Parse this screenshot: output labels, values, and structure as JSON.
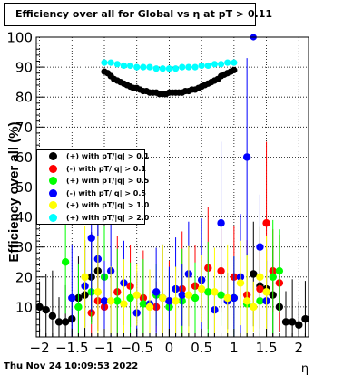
{
  "footer": "Thu Nov 24 10:09:53 2022",
  "chart_data": {
    "type": "scatter",
    "title": "Efficiency over all for Global vs   η at pT > 0.11",
    "xlabel": "η",
    "ylabel": "Efficiency over all (%)",
    "xlim": [
      -2.05,
      2.15
    ],
    "ylim": [
      0,
      100
    ],
    "xticks": [
      "−2",
      "−1.5",
      "−1",
      "−0.5",
      "0",
      "0.5",
      "1",
      "1.5",
      "2"
    ],
    "yticks": [
      "10",
      "20",
      "30",
      "40",
      "50",
      "60",
      "70",
      "80",
      "90",
      "100"
    ],
    "grid": true,
    "legend_position": "middle-left",
    "series": [
      {
        "name": "(+) with pT/|q| > 0.1",
        "color": "#000000",
        "x": [
          -2.0,
          -1.9,
          -1.8,
          -1.7,
          -1.6,
          -1.5,
          -1.4,
          -1.3,
          -1.2,
          -1.1,
          -1.0,
          -0.95,
          -0.9,
          -0.85,
          -0.8,
          -0.75,
          -0.7,
          -0.65,
          -0.6,
          -0.55,
          -0.5,
          -0.45,
          -0.4,
          -0.35,
          -0.3,
          -0.25,
          -0.2,
          -0.15,
          -0.1,
          -0.05,
          0.0,
          0.05,
          0.1,
          0.15,
          0.2,
          0.25,
          0.3,
          0.35,
          0.4,
          0.45,
          0.5,
          0.55,
          0.6,
          0.65,
          0.7,
          0.75,
          0.8,
          0.85,
          0.9,
          0.95,
          1.0,
          1.3,
          1.4,
          1.5,
          1.6,
          1.7,
          1.8,
          1.9,
          2.0,
          2.1
        ],
        "y": [
          10,
          9,
          7,
          5,
          5,
          6,
          13,
          14,
          20,
          22,
          88.5,
          88,
          87,
          86,
          85.5,
          85,
          84.5,
          84,
          83.5,
          83,
          83,
          82.5,
          82,
          82,
          81.5,
          81.5,
          81.5,
          81,
          81,
          81,
          81.5,
          81.5,
          81.5,
          81.5,
          81.5,
          82,
          82,
          82.5,
          82.5,
          83,
          83.5,
          84,
          84.5,
          85,
          85.5,
          86,
          87,
          87.5,
          88,
          88.5,
          89,
          21,
          17,
          16,
          14,
          10,
          5,
          5,
          4,
          6
        ]
      },
      {
        "name": "(-) with pT/|q| > 0.1",
        "color": "#ff0000",
        "x": [
          -1.2,
          -1.1,
          -1.0,
          -0.8,
          -0.6,
          -0.4,
          -0.2,
          0.0,
          0.2,
          0.4,
          0.6,
          0.8,
          1.0,
          1.2,
          1.4,
          1.5,
          1.6,
          1.7
        ],
        "y": [
          8,
          12,
          10,
          15,
          17,
          13,
          10,
          12,
          16,
          17,
          23,
          22,
          20,
          14,
          16,
          38,
          22,
          18
        ]
      },
      {
        "name": "(+) with pT/|q| > 0.5",
        "color": "#00ff00",
        "x": [
          -1.6,
          -1.4,
          -1.2,
          -1.0,
          -0.8,
          -0.6,
          -0.4,
          -0.2,
          0.0,
          0.2,
          0.4,
          0.6,
          0.8,
          1.0,
          1.2,
          1.4,
          1.6,
          1.7
        ],
        "y": [
          25,
          10,
          15,
          20,
          12,
          13,
          11,
          14,
          10,
          12,
          13,
          15,
          14,
          13,
          11,
          12,
          20,
          22
        ]
      },
      {
        "name": "(-) with pT/|q| > 0.5",
        "color": "#0000ff",
        "x": [
          -1.5,
          -1.3,
          -1.2,
          -1.1,
          -1.0,
          -0.9,
          -0.7,
          -0.5,
          -0.3,
          -0.2,
          -0.1,
          0.0,
          0.1,
          0.2,
          0.3,
          0.5,
          0.7,
          0.8,
          0.9,
          1.0,
          1.1,
          1.2,
          1.3,
          1.4,
          1.5
        ],
        "y": [
          13,
          17,
          33,
          26,
          12,
          22,
          18,
          8,
          11,
          15,
          13,
          12,
          16,
          14,
          21,
          19,
          9,
          38,
          12,
          13,
          20,
          60,
          100,
          30,
          12
        ]
      },
      {
        "name": "(+) with pT/|q| > 1.0",
        "color": "#ffff00",
        "x": [
          -1.3,
          -1.1,
          -0.9,
          -0.7,
          -0.5,
          -0.3,
          -0.1,
          0.1,
          0.3,
          0.5,
          0.7,
          0.9,
          1.1,
          1.2,
          1.3,
          1.4,
          1.5
        ],
        "y": [
          20,
          15,
          12,
          11,
          14,
          10,
          13,
          12,
          14,
          16,
          15,
          13,
          18,
          12,
          10,
          20,
          15
        ]
      },
      {
        "name": "(+) with pT/|q| > 2.0",
        "color": "#00ffff",
        "x": [
          -1.0,
          -0.9,
          -0.8,
          -0.7,
          -0.6,
          -0.5,
          -0.4,
          -0.3,
          -0.2,
          -0.1,
          0.0,
          0.1,
          0.2,
          0.3,
          0.4,
          0.5,
          0.6,
          0.7,
          0.8,
          0.9,
          1.0
        ],
        "y": [
          91.5,
          91.5,
          91,
          90.5,
          90.5,
          90,
          90,
          90,
          89.5,
          89.5,
          89.5,
          89.5,
          90,
          90,
          90,
          90.5,
          90.5,
          91,
          91,
          91.5,
          91.5
        ]
      }
    ]
  }
}
